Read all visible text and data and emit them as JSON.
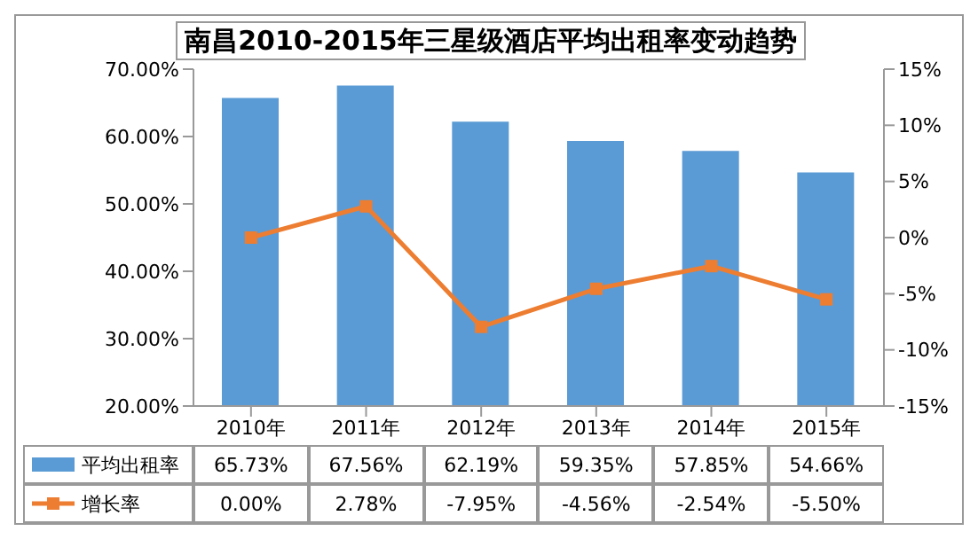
{
  "chart_data": {
    "type": "bar",
    "title": "南昌2010-2015年三星级酒店平均出租率变动趋势",
    "categories": [
      "2010年",
      "2011年",
      "2012年",
      "2013年",
      "2014年",
      "2015年"
    ],
    "series": [
      {
        "name": "平均出租率",
        "color": "#5b9bd5",
        "values": [
          65.73,
          67.56,
          62.19,
          59.35,
          57.85,
          54.66
        ],
        "value_labels": [
          "65.73%",
          "67.56%",
          "62.19%",
          "59.35%",
          "57.85%",
          "54.66%"
        ]
      },
      {
        "name": "增长率",
        "type": "line",
        "axis": "y2",
        "color": "#ed7d31",
        "values": [
          0.0,
          2.78,
          -7.95,
          -4.56,
          -2.54,
          -5.5
        ],
        "value_labels": [
          "0.00%",
          "2.78%",
          "-7.95%",
          "-4.56%",
          "-2.54%",
          "-5.50%"
        ]
      }
    ],
    "ylim": [
      20,
      70
    ],
    "yticks": [
      {
        "value": 20,
        "label": "20.00%"
      },
      {
        "value": 30,
        "label": "30.00%"
      },
      {
        "value": 40,
        "label": "40.00%"
      },
      {
        "value": 50,
        "label": "50.00%"
      },
      {
        "value": 60,
        "label": "60.00%"
      },
      {
        "value": 70,
        "label": "70.00%"
      }
    ],
    "y2lim": [
      -15,
      15
    ],
    "y2ticks": [
      {
        "value": -15,
        "label": "-15%"
      },
      {
        "value": -10,
        "label": "-10%"
      },
      {
        "value": -5,
        "label": "-5%"
      },
      {
        "value": 0,
        "label": "0%"
      },
      {
        "value": 5,
        "label": "5%"
      },
      {
        "value": 10,
        "label": "10%"
      },
      {
        "value": 15,
        "label": "15%"
      }
    ],
    "grid": false,
    "legend": "bottom",
    "marker": "square",
    "line_style": "solid"
  }
}
